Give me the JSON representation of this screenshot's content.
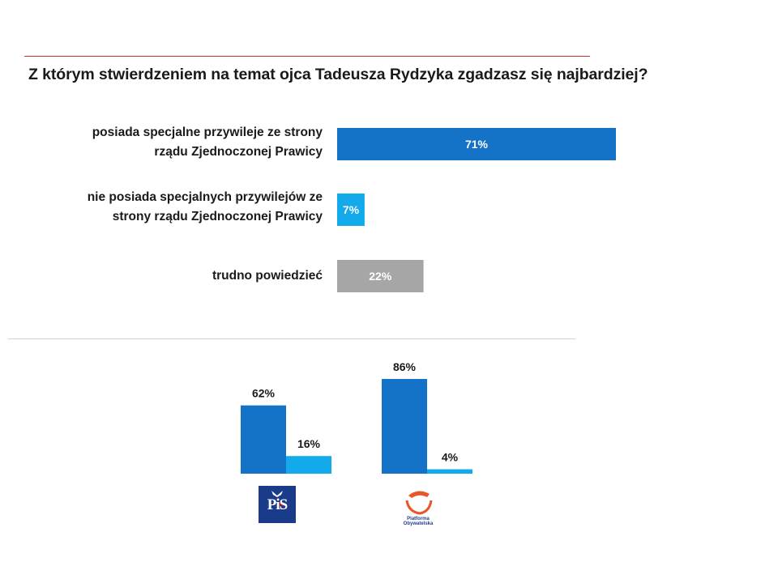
{
  "title": "Z którym stwierdzeniem na temat ojca Tadeusza Rydzyka zgadzasz się najbardziej?",
  "colors": {
    "dark_blue": "#1473c6",
    "light_blue": "#12aaea",
    "grey": "#a6a6a6",
    "red_rule": "#c0392b"
  },
  "chart_data": [
    {
      "type": "bar",
      "orientation": "horizontal",
      "categories": [
        [
          "posiada specjalne przywileje ze strony",
          "rządu Zjednoczonej Prawicy"
        ],
        [
          "nie posiada specjalnych przywilejów ze",
          "strony rządu Zjednoczonej Prawicy"
        ],
        [
          "trudno powiedzieć"
        ]
      ],
      "values": [
        71,
        7,
        22
      ],
      "value_labels": [
        "71%",
        "7%",
        "22%"
      ],
      "colors": [
        "#1473c6",
        "#12aaea",
        "#a6a6a6"
      ],
      "xlim": [
        0,
        100
      ],
      "grid": false
    },
    {
      "type": "bar",
      "orientation": "vertical",
      "groups": [
        {
          "logo": "PiS",
          "logo_text": "PiS",
          "values": [
            62,
            16
          ],
          "value_labels": [
            "62%",
            "16%"
          ]
        },
        {
          "logo": "Platforma Obywatelska",
          "logo_text": [
            "Platforma",
            "Obywatelska"
          ],
          "values": [
            86,
            4
          ],
          "value_labels": [
            "86%",
            "4%"
          ]
        }
      ],
      "series_colors": [
        "#1473c6",
        "#12aaea"
      ],
      "ylim": [
        0,
        100
      ],
      "grid": false
    }
  ]
}
